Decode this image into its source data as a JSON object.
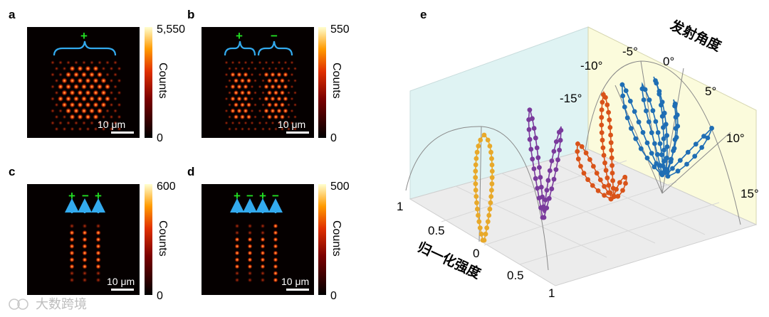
{
  "panels": [
    {
      "label": "a",
      "cbar_max": "5,550",
      "cbar_min": "0",
      "cbar_title": "Counts",
      "scale_label": "10 μm",
      "signs": [
        "+"
      ]
    },
    {
      "label": "b",
      "cbar_max": "550",
      "cbar_min": "0",
      "cbar_title": "Counts",
      "scale_label": "10 μm",
      "signs": [
        "+",
        "−"
      ]
    },
    {
      "label": "c",
      "cbar_max": "600",
      "cbar_min": "0",
      "cbar_title": "Counts",
      "scale_label": "10 μm",
      "signs": [
        "+",
        "−",
        "+"
      ]
    },
    {
      "label": "d",
      "cbar_max": "500",
      "cbar_min": "0",
      "cbar_title": "Counts",
      "scale_label": "10 μm",
      "signs": [
        "+",
        "−",
        "+",
        "−"
      ]
    }
  ],
  "panel_e": {
    "label": "e",
    "angle_axis_title": "发射角度",
    "angle_ticks": [
      "-15°",
      "-10°",
      "-5°",
      "0°",
      "5°",
      "10°",
      "15°"
    ],
    "intensity_axis_title": "归一化强度",
    "intensity_ticks_left": [
      "1",
      "0.5",
      "0"
    ],
    "intensity_ticks_right": [
      "0.5",
      "1"
    ],
    "series_colors": [
      "#e8a92a",
      "#7a3a9c",
      "#d95319",
      "#1f6eb4"
    ]
  },
  "watermark": "大数跨境",
  "colors": {
    "sign_green": "#22dd22",
    "arrow_cyan": "#33aaee",
    "brace_cyan": "#33aaee"
  }
}
